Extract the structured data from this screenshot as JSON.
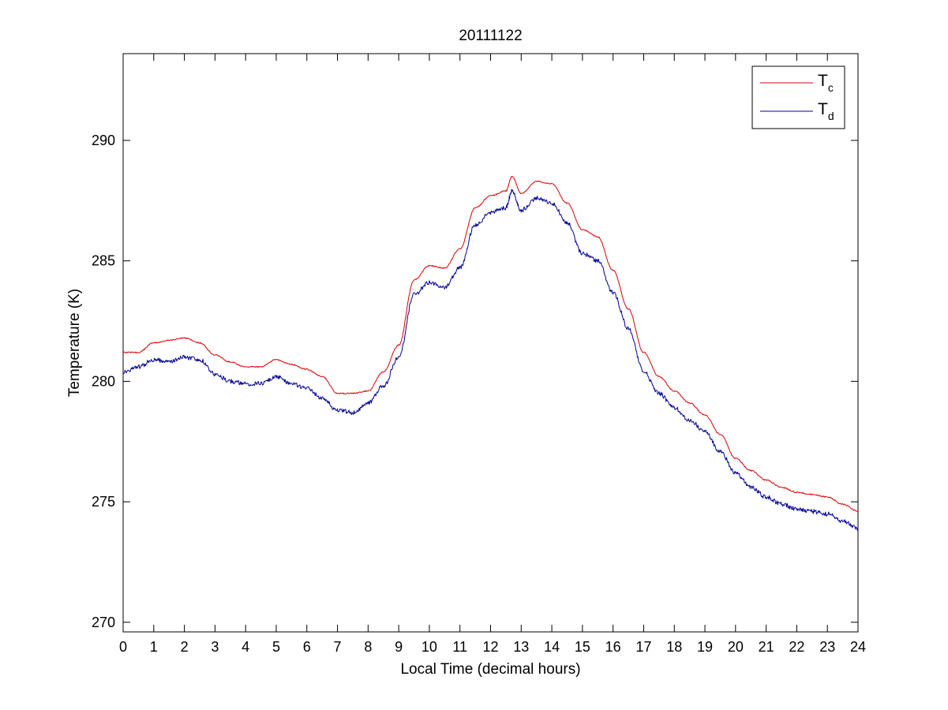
{
  "chart_data": {
    "type": "line",
    "title": "20111122",
    "xlabel": "Local Time (decimal hours)",
    "ylabel": "Temperature (K)",
    "xlim": [
      0,
      24
    ],
    "ylim": [
      269.6,
      293.6
    ],
    "xticks": [
      0,
      1,
      2,
      3,
      4,
      5,
      6,
      7,
      8,
      9,
      10,
      11,
      12,
      13,
      14,
      15,
      16,
      17,
      18,
      19,
      20,
      21,
      22,
      23,
      24
    ],
    "yticks": [
      270,
      275,
      280,
      285,
      290
    ],
    "grid": false,
    "legend_position": "top-right",
    "series": [
      {
        "name": "Tc",
        "legend_main": "T",
        "legend_sub": "c",
        "color": "#dd0000",
        "x": [
          0,
          0.5,
          1,
          1.5,
          2,
          2.5,
          3,
          3.5,
          4,
          4.5,
          5,
          5.5,
          6,
          6.5,
          7,
          7.5,
          8,
          8.5,
          9,
          9.5,
          10,
          10.5,
          11,
          11.5,
          12,
          12.5,
          12.7,
          13,
          13.5,
          14,
          14.5,
          15,
          15.5,
          16,
          16.5,
          17,
          17.5,
          18,
          18.5,
          19,
          19.5,
          20,
          20.5,
          21,
          21.5,
          22,
          22.5,
          23,
          23.5,
          24
        ],
        "y": [
          281.2,
          281.2,
          281.6,
          281.7,
          281.8,
          281.6,
          281.1,
          280.8,
          280.6,
          280.6,
          280.9,
          280.7,
          280.5,
          280.2,
          279.5,
          279.5,
          279.6,
          280.4,
          281.5,
          284.2,
          284.8,
          284.7,
          285.5,
          287.2,
          287.7,
          287.9,
          288.5,
          287.8,
          288.3,
          288.2,
          287.4,
          286.3,
          286.0,
          284.6,
          283.0,
          281.2,
          280.2,
          279.6,
          279.1,
          278.6,
          277.8,
          276.8,
          276.3,
          275.9,
          275.6,
          275.4,
          275.3,
          275.2,
          274.9,
          274.6
        ]
      },
      {
        "name": "Td",
        "legend_main": "T",
        "legend_sub": "d",
        "color": "#000099",
        "x": [
          0,
          0.5,
          1,
          1.5,
          2,
          2.5,
          3,
          3.5,
          4,
          4.5,
          5,
          5.5,
          6,
          6.5,
          7,
          7.5,
          8,
          8.5,
          9,
          9.5,
          10,
          10.5,
          11,
          11.5,
          12,
          12.5,
          12.7,
          13,
          13.5,
          14,
          14.5,
          15,
          15.5,
          16,
          16.5,
          17,
          17.5,
          18,
          18.5,
          19,
          19.5,
          20,
          20.5,
          21,
          21.5,
          22,
          22.5,
          23,
          23.5,
          24
        ],
        "y": [
          280.4,
          280.6,
          280.9,
          280.8,
          281.0,
          280.9,
          280.3,
          280.0,
          279.9,
          279.9,
          280.2,
          279.9,
          279.7,
          279.3,
          278.8,
          278.7,
          279.1,
          279.8,
          281.0,
          283.6,
          284.1,
          283.9,
          284.7,
          286.5,
          287.0,
          287.2,
          287.9,
          287.1,
          287.6,
          287.4,
          286.6,
          285.3,
          285.0,
          283.7,
          282.2,
          280.4,
          279.5,
          278.9,
          278.4,
          277.9,
          277.1,
          276.2,
          275.6,
          275.2,
          274.9,
          274.7,
          274.6,
          274.5,
          274.2,
          273.9
        ]
      }
    ]
  }
}
